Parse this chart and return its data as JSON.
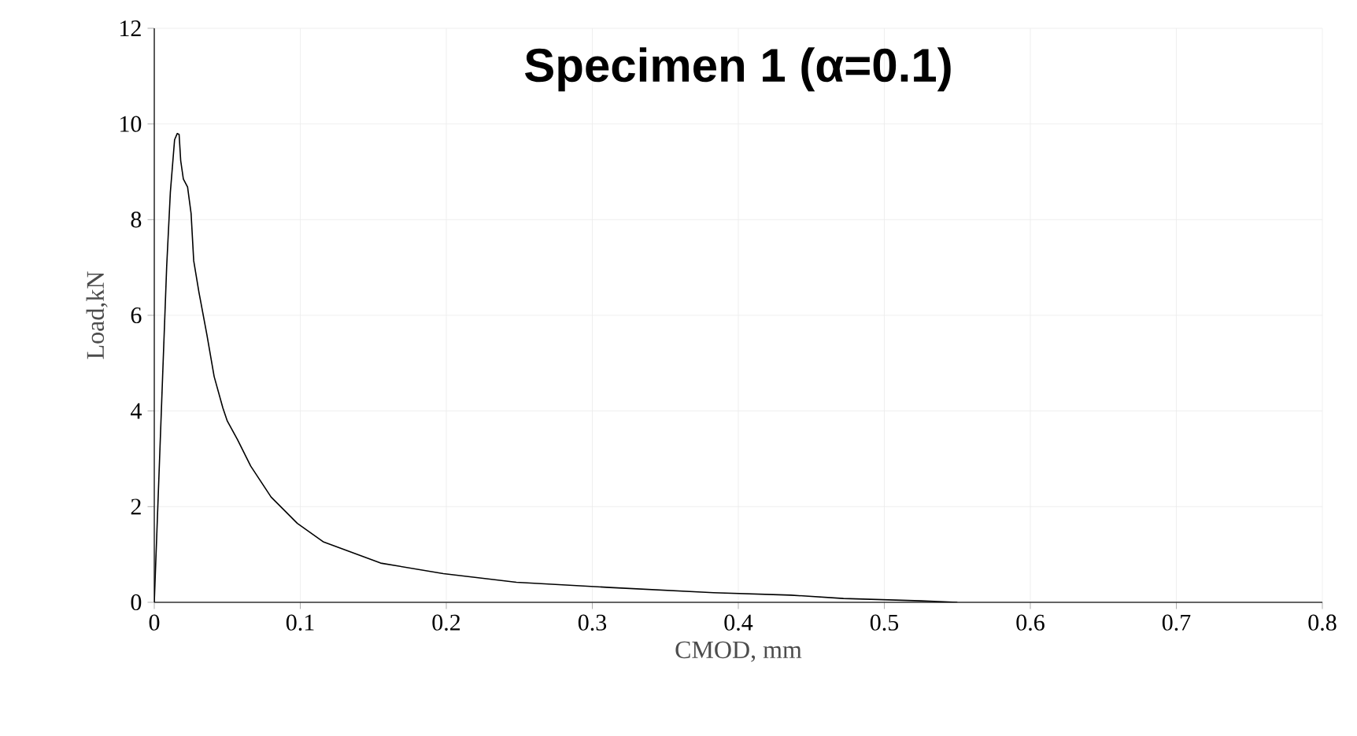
{
  "chart_data": {
    "type": "line",
    "title": "Specimen 1 (α=0.1)",
    "xlabel": "CMOD, mm",
    "ylabel": "Load,kN",
    "x": [
      0,
      0.0057,
      0.0085,
      0.011,
      0.0139,
      0.0157,
      0.017,
      0.0181,
      0.0199,
      0.0228,
      0.0252,
      0.027,
      0.0306,
      0.036,
      0.041,
      0.047,
      0.05,
      0.057,
      0.066,
      0.08,
      0.098,
      0.116,
      0.155,
      0.198,
      0.248,
      0.312,
      0.383,
      0.436,
      0.472,
      0.525,
      0.55
    ],
    "series": [
      {
        "color": "#000000",
        "values": [
          0,
          4.72,
          7.03,
          8.57,
          9.67,
          9.8,
          9.78,
          9.23,
          8.85,
          8.68,
          8.13,
          7.14,
          6.48,
          5.6,
          4.72,
          4.06,
          3.79,
          3.4,
          2.85,
          2.2,
          1.65,
          1.26,
          0.82,
          0.6,
          0.42,
          0.31,
          0.2,
          0.15,
          0.08,
          0.03,
          0
        ]
      }
    ],
    "xlim": [
      0,
      0.8
    ],
    "ylim": [
      0,
      12
    ],
    "xticks": [
      0,
      0.1,
      0.2,
      0.3,
      0.4,
      0.5,
      0.6,
      0.7,
      0.8
    ],
    "yticks": [
      0,
      2,
      4,
      6,
      8,
      10,
      12
    ],
    "grid": true,
    "marker": "none",
    "line_style": "solid"
  }
}
